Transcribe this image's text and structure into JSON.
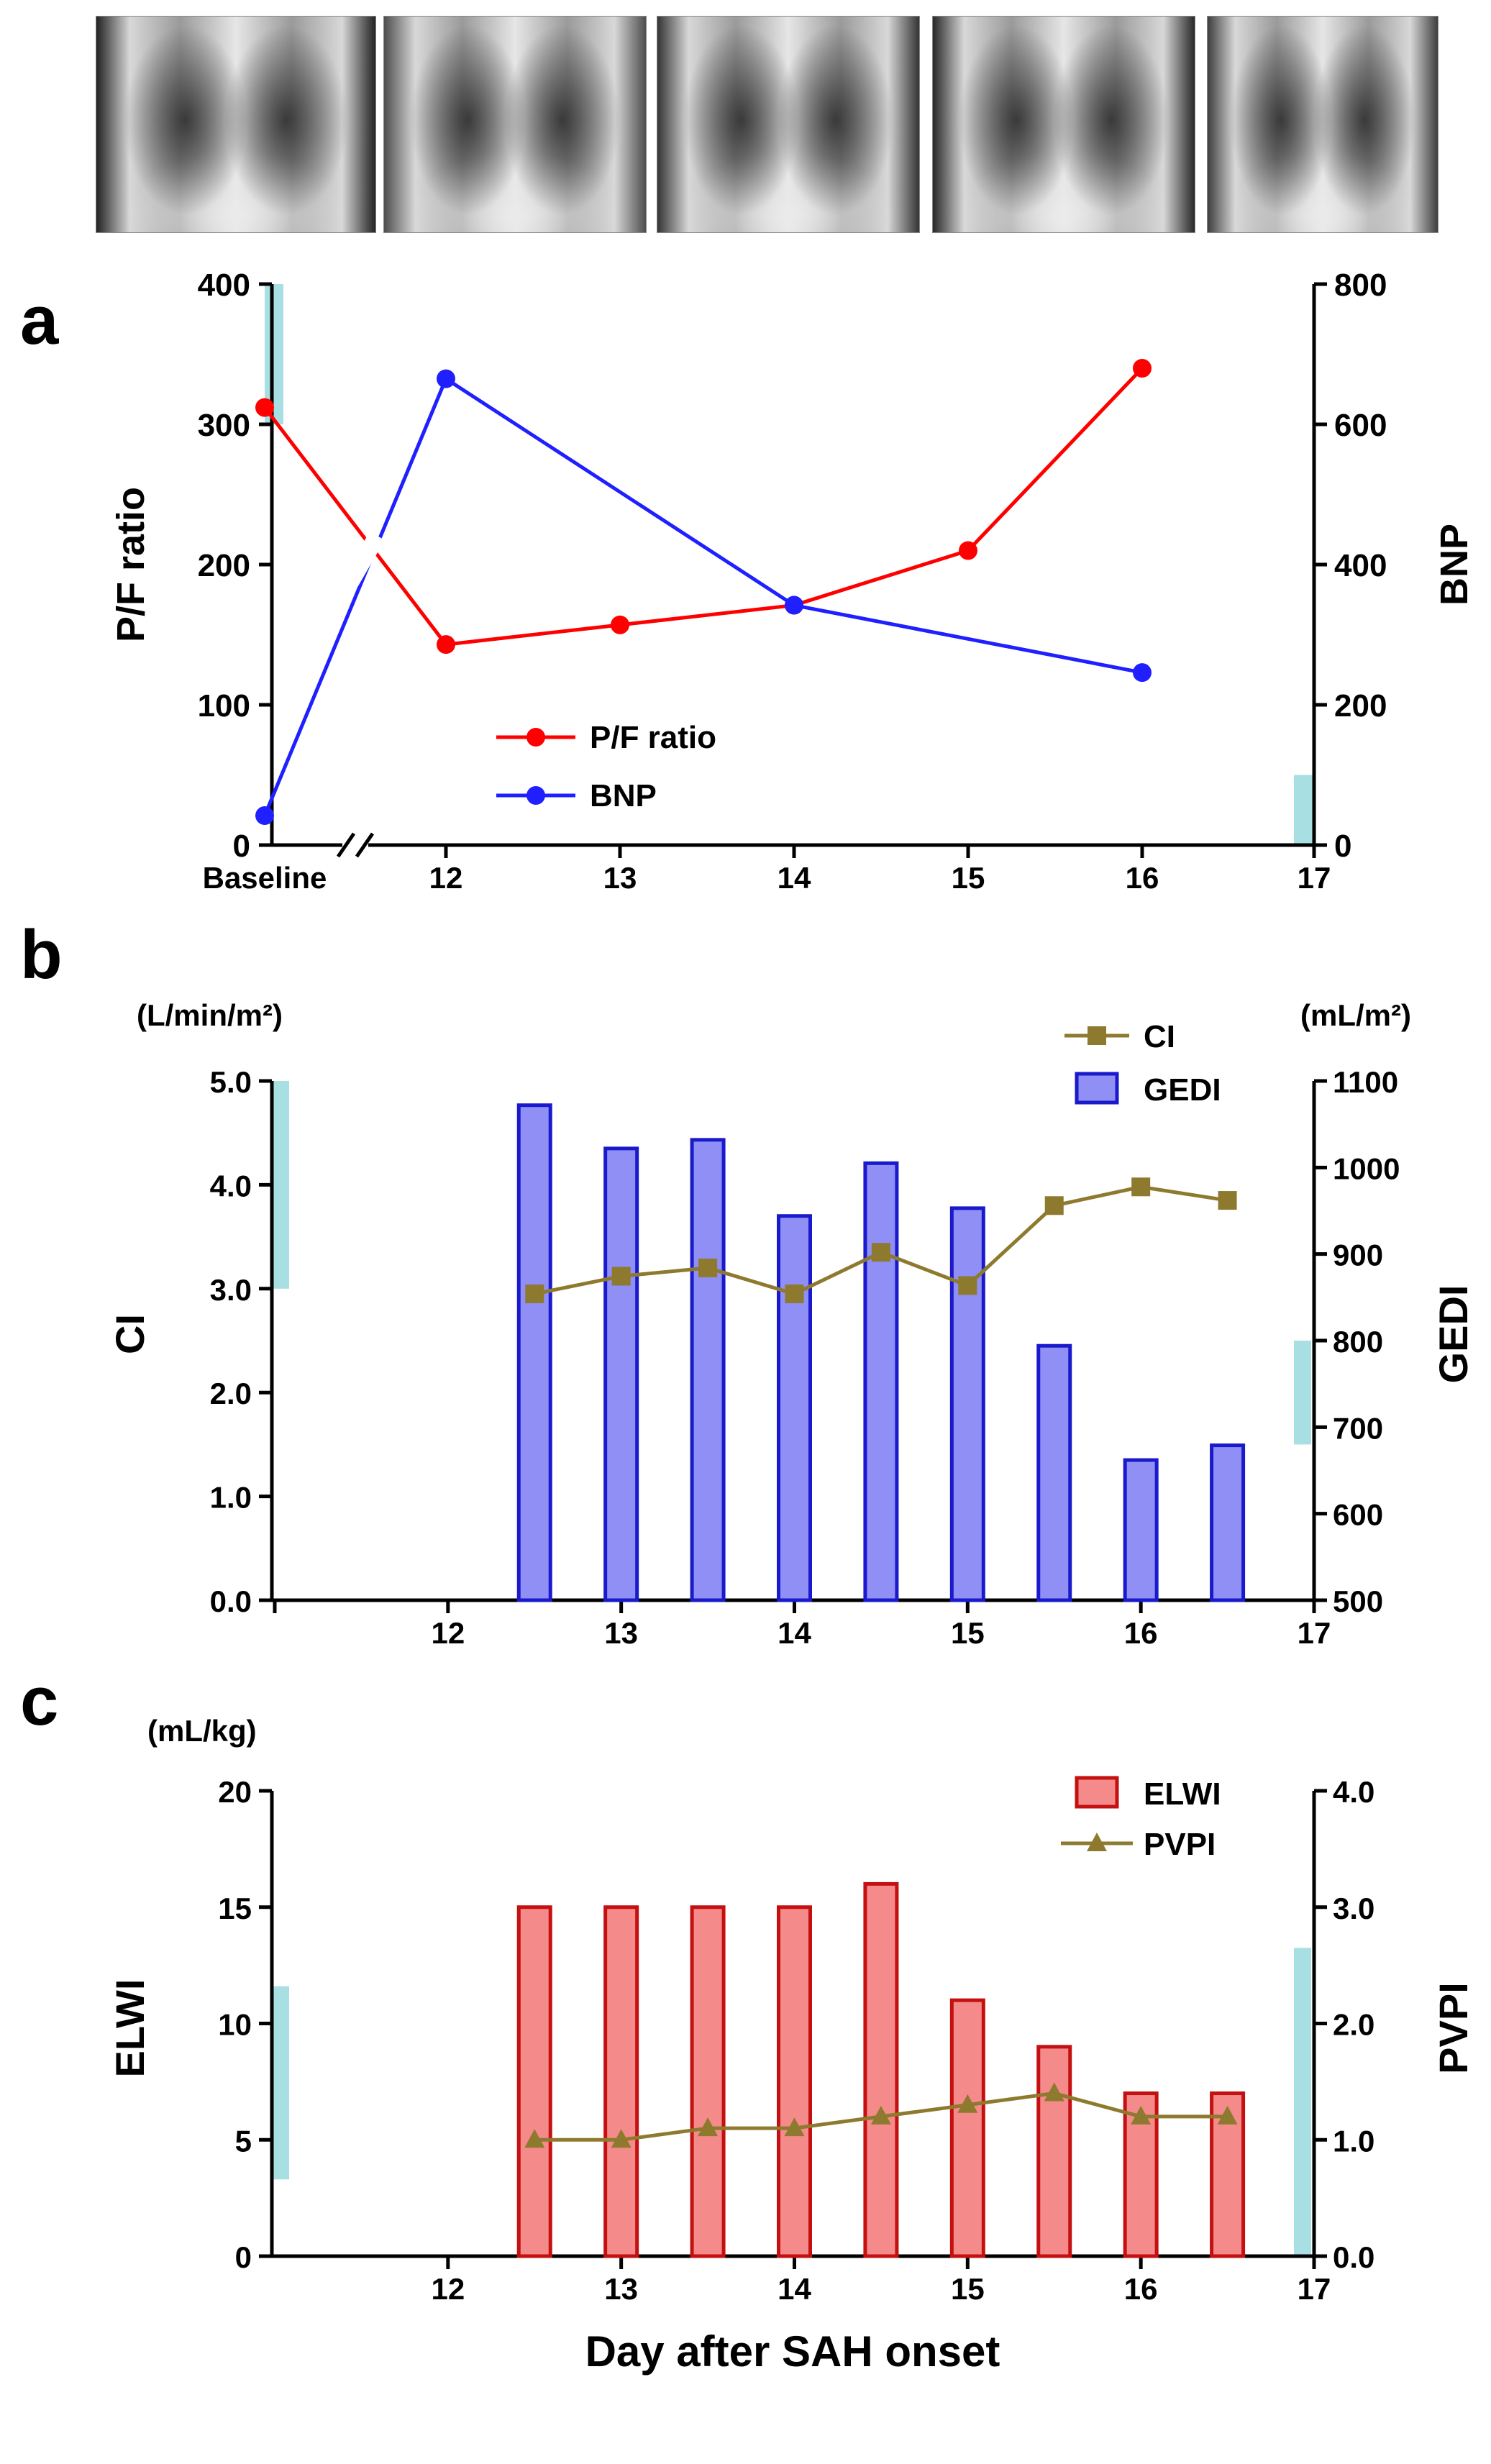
{
  "xray_strip": {
    "label": "Chest X-ray series",
    "frames": 5
  },
  "colors": {
    "pf": "#ff0000",
    "bnp": "#1f1fff",
    "ci": "#8e7a2e",
    "gedi_fill": "#8f8ff5",
    "gedi_edge": "#1a1acc",
    "elwi_fill": "#f58a8a",
    "elwi_edge": "#c41010",
    "pvpi": "#8e7a2e",
    "normal_range": "#a8dfe3"
  },
  "chart_data": [
    {
      "panel": "a",
      "type": "line",
      "x_categories": [
        "Baseline",
        "12",
        "13",
        "14",
        "15",
        "16",
        "17"
      ],
      "axis_break_after": "Baseline",
      "left_axis": {
        "label": "P/F ratio",
        "ylim": [
          0,
          400
        ],
        "ticks": [
          "0",
          "100",
          "200",
          "300",
          "400"
        ]
      },
      "right_axis": {
        "label": "BNP",
        "ylim": [
          0,
          800
        ],
        "ticks": [
          "0",
          "200",
          "400",
          "600",
          "800"
        ]
      },
      "series": [
        {
          "name": "P/F ratio",
          "axis": "left",
          "x": [
            0,
            1,
            2,
            3,
            4,
            5
          ],
          "values": [
            312,
            143,
            157,
            171,
            210,
            340
          ]
        },
        {
          "name": "BNP",
          "axis": "right",
          "x": [
            0,
            1,
            3,
            5
          ],
          "values": [
            42,
            665,
            342,
            246
          ]
        }
      ],
      "normal_ranges": [
        {
          "axis": "left",
          "range": [
            300,
            400
          ]
        },
        {
          "axis": "right",
          "range": [
            0,
            100
          ]
        }
      ]
    },
    {
      "panel": "b",
      "type": "bar+line",
      "x_range": [
        11,
        17
      ],
      "x_ticks": [
        "11",
        "12",
        "13",
        "14",
        "15",
        "16",
        "17"
      ],
      "left_axis": {
        "label": "CI",
        "unit": "(L/min/m²)",
        "ylim": [
          0,
          5
        ],
        "ticks": [
          "0.0",
          "1.0",
          "2.0",
          "3.0",
          "4.0",
          "5.0"
        ]
      },
      "right_axis": {
        "label": "GEDI",
        "unit": "(mL/m²)",
        "ylim": [
          500,
          1100
        ],
        "ticks": [
          "500",
          "600",
          "700",
          "800",
          "900",
          "1000",
          "1100"
        ]
      },
      "series": [
        {
          "name": "CI",
          "type": "line",
          "axis": "left",
          "x": [
            12.5,
            13,
            13.5,
            14,
            14.5,
            15,
            15.5,
            16,
            16.5
          ],
          "values": [
            2.95,
            3.12,
            3.2,
            2.95,
            3.35,
            3.03,
            3.8,
            3.98,
            3.85
          ]
        },
        {
          "name": "GEDI",
          "type": "bar",
          "axis": "right",
          "x": [
            12.5,
            13,
            13.5,
            14,
            14.5,
            15,
            15.5,
            16,
            16.5
          ],
          "values": [
            1072,
            1022,
            1032,
            944,
            1005,
            953,
            794,
            662,
            679
          ]
        }
      ],
      "normal_ranges": [
        {
          "axis": "left",
          "range": [
            3.0,
            5.0
          ]
        },
        {
          "axis": "right",
          "range": [
            680,
            800
          ]
        }
      ]
    },
    {
      "panel": "c",
      "type": "bar+line",
      "x_range": [
        11,
        17
      ],
      "x_ticks": [
        "12",
        "13",
        "14",
        "15",
        "16",
        "17"
      ],
      "xlabel": "Day after SAH onset",
      "left_axis": {
        "label": "ELWI",
        "unit": "(mL/kg)",
        "ylim": [
          0,
          20
        ],
        "ticks": [
          "0",
          "5",
          "10",
          "15",
          "20"
        ]
      },
      "right_axis": {
        "label": "PVPI",
        "ylim": [
          0,
          4
        ],
        "ticks": [
          "0.0",
          "1.0",
          "2.0",
          "3.0",
          "4.0"
        ]
      },
      "series": [
        {
          "name": "ELWI",
          "type": "bar",
          "axis": "left",
          "x": [
            12.5,
            13,
            13.5,
            14,
            14.5,
            15,
            15.5,
            16,
            16.5
          ],
          "values": [
            15,
            15,
            15,
            15,
            16,
            11,
            9,
            7,
            7
          ]
        },
        {
          "name": "PVPI",
          "type": "line",
          "axis": "right",
          "x": [
            12.5,
            13,
            13.5,
            14,
            14.5,
            15,
            15.5,
            16,
            16.5
          ],
          "values": [
            1.0,
            1.0,
            1.1,
            1.1,
            1.2,
            1.3,
            1.4,
            1.2,
            1.2
          ]
        }
      ],
      "normal_ranges": [
        {
          "axis": "left",
          "range": [
            3.3,
            11.6
          ]
        },
        {
          "axis": "right",
          "range": [
            0,
            2.65
          ]
        }
      ]
    }
  ],
  "labels": {
    "panel_a": "a",
    "panel_b": "b",
    "panel_c": "c"
  }
}
